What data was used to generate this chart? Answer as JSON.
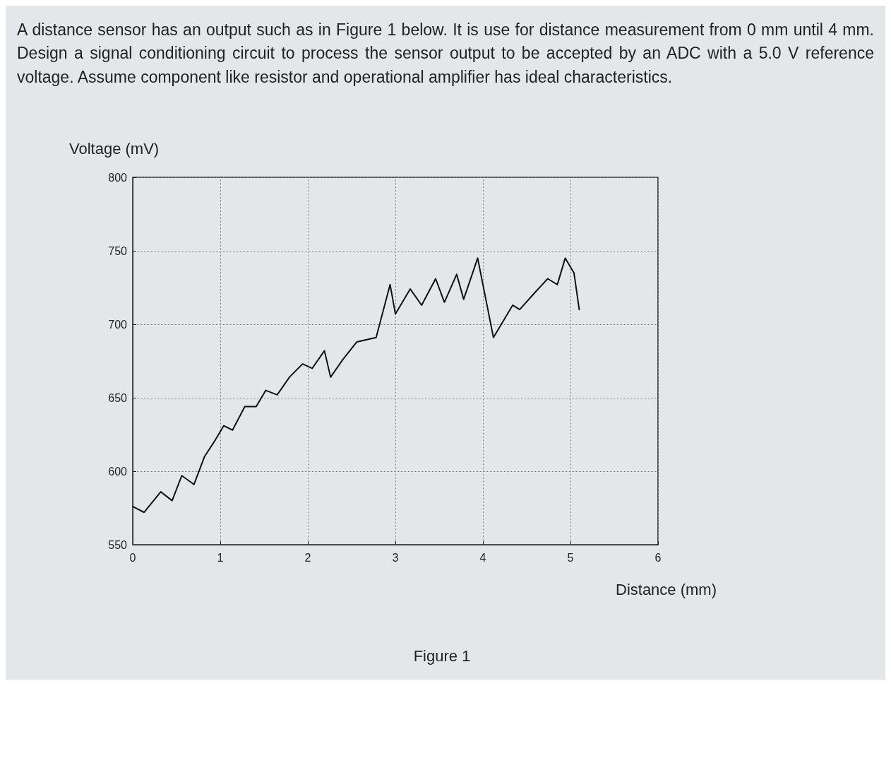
{
  "chart_data": {
    "type": "line",
    "title": "A distance sensor has an output such as in Figure 1 below. It is use for distance measurement from 0 mm until 4 mm. Design a signal conditioning circuit to process the sensor output to be accepted by an ADC with a 5.0 V reference voltage. Assume component like resistor and operational amplifier has ideal characteristics.",
    "xlabel": "Distance (mm)",
    "ylabel": "Voltage (mV)",
    "annotations": [
      "Figure 1"
    ],
    "x": [
      0,
      0.13,
      0.32,
      0.45,
      0.56,
      0.7,
      0.82,
      0.93,
      1.04,
      1.14,
      1.28,
      1.41,
      1.52,
      1.65,
      1.79,
      1.94,
      2.05,
      2.19,
      2.26,
      2.4,
      2.56,
      2.78,
      2.94,
      3.0,
      3.17,
      3.3,
      3.46,
      3.56,
      3.7,
      3.78,
      3.94,
      4.12,
      4.34,
      4.42,
      4.6,
      4.74,
      4.85,
      4.94,
      5.04,
      5.1
    ],
    "series": [
      {
        "color": "#111111",
        "values": [
          576,
          572,
          586,
          580,
          597,
          591,
          610,
          620,
          631,
          628,
          644,
          644,
          655,
          652,
          664,
          673,
          670,
          682,
          664,
          676,
          688,
          691,
          727,
          707,
          724,
          713,
          731,
          715,
          734,
          717,
          745,
          691,
          713,
          710,
          722,
          731,
          727,
          745,
          735,
          710
        ]
      }
    ],
    "xlim": [
      0,
      6
    ],
    "xticks": [
      0,
      1,
      2,
      3,
      4,
      5,
      6
    ],
    "ylim": [
      550,
      800
    ],
    "yticks": [
      550,
      600,
      650,
      700,
      750,
      800
    ],
    "grid": true,
    "marker": "none",
    "line_style": "solid"
  }
}
